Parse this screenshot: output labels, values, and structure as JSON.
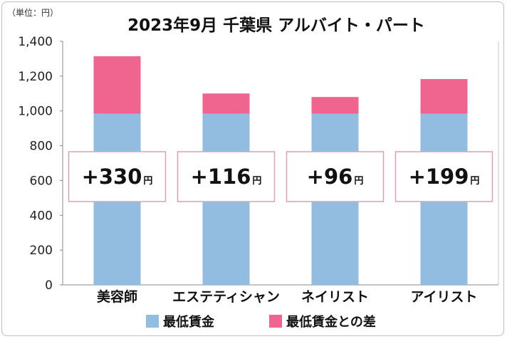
{
  "unit_label": "（単位：円）",
  "colors": {
    "base": "#92bde0",
    "diff": "#f0658f",
    "box_border": "#d9a0b8",
    "axis": "#888888",
    "grid": "#c8c8c8"
  },
  "chart_data": {
    "type": "bar",
    "stacked": true,
    "title": "2023年9月 千葉県 アルバイト・パート",
    "categories": [
      "美容師",
      "エステティシャン",
      "ネイリスト",
      "アイリスト"
    ],
    "series": [
      {
        "name": "最低賃金",
        "values": [
          984,
          984,
          984,
          984
        ]
      },
      {
        "name": "最低賃金との差",
        "values": [
          330,
          116,
          96,
          199
        ]
      }
    ],
    "data_labels": [
      "+330",
      "+116",
      "+96",
      "+199"
    ],
    "data_label_unit": "円",
    "ylim": [
      0,
      1400
    ],
    "yticks": [
      0,
      200,
      400,
      600,
      800,
      1000,
      1200,
      1400
    ],
    "ytick_labels": [
      "0",
      "200",
      "400",
      "600",
      "800",
      "1,000",
      "1,200",
      "1,400"
    ],
    "grid": false,
    "legend_position": "bottom"
  }
}
